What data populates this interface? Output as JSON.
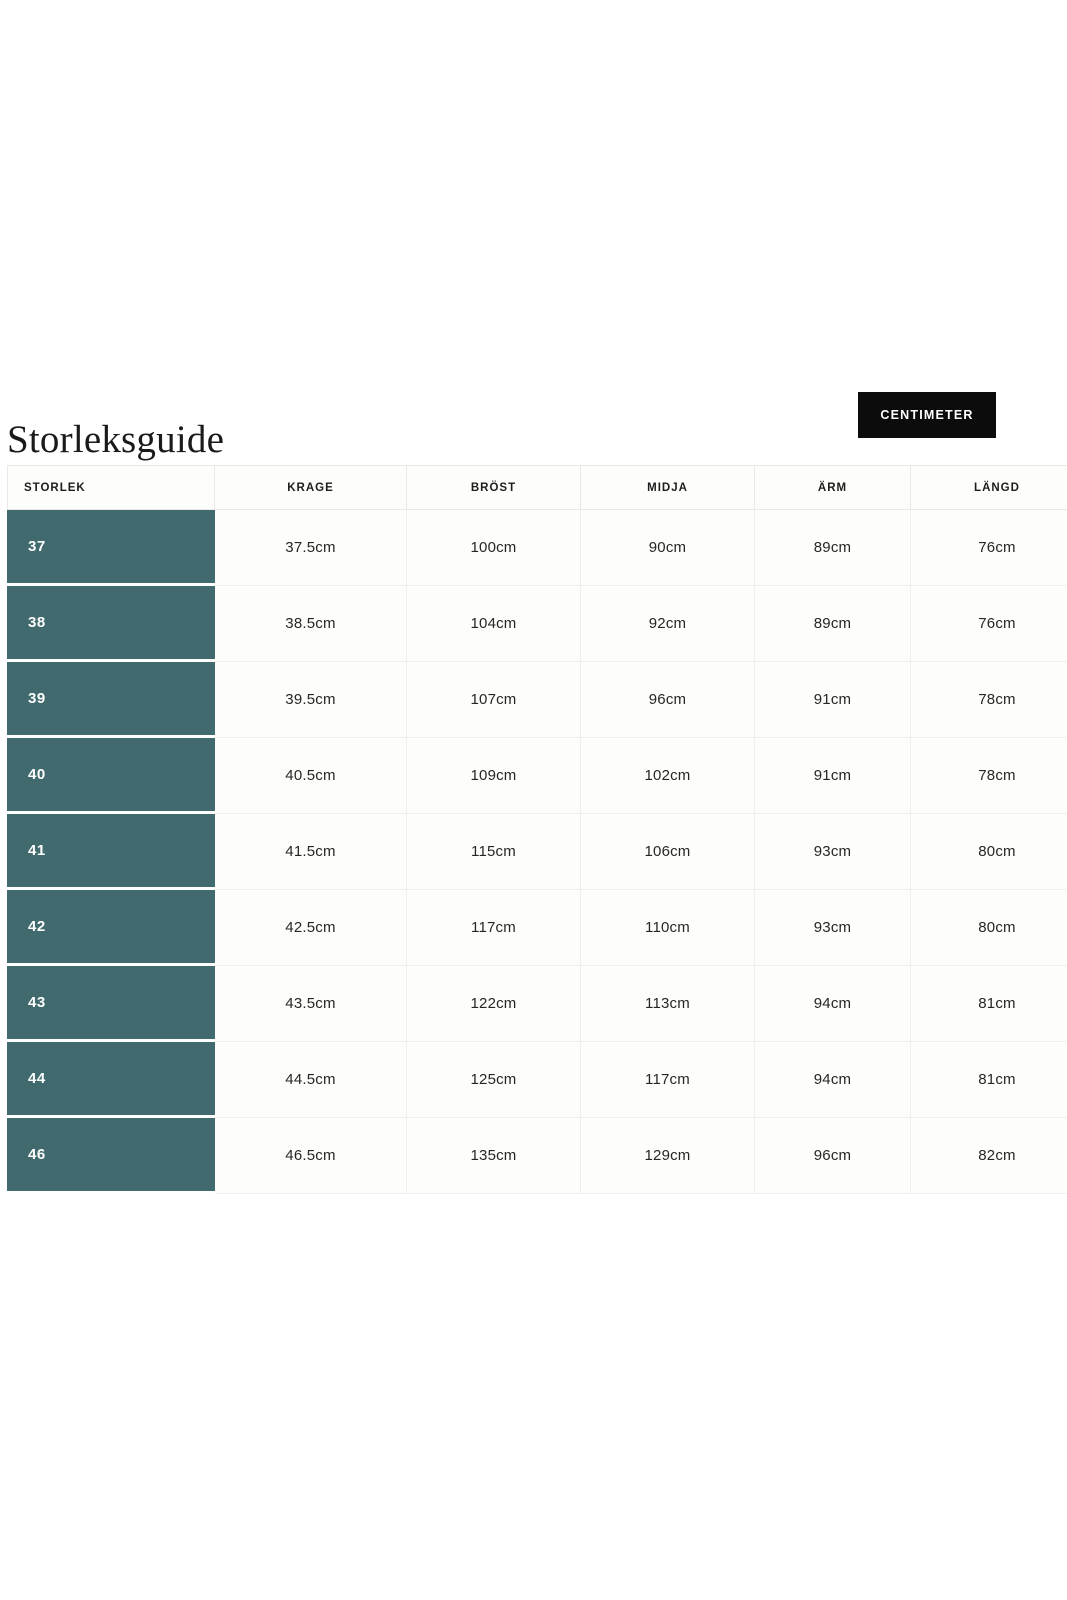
{
  "page": {
    "title": "Storleksguide"
  },
  "toolbar": {
    "unit_button_label": "CENTIMETER"
  },
  "colors": {
    "accent_teal": "#406a6e",
    "button_bg": "#0c0c0c",
    "button_text": "#ffffff",
    "cell_border": "#f1efeb",
    "text_dark": "#1d1d1d"
  },
  "table": {
    "headers": [
      "STORLEK",
      "KRAGE",
      "BRÖST",
      "MIDJA",
      "ÄRM",
      "LÄNGD"
    ],
    "rows": [
      {
        "size": "37",
        "values": [
          "37.5cm",
          "100cm",
          "90cm",
          "89cm",
          "76cm"
        ]
      },
      {
        "size": "38",
        "values": [
          "38.5cm",
          "104cm",
          "92cm",
          "89cm",
          "76cm"
        ]
      },
      {
        "size": "39",
        "values": [
          "39.5cm",
          "107cm",
          "96cm",
          "91cm",
          "78cm"
        ]
      },
      {
        "size": "40",
        "values": [
          "40.5cm",
          "109cm",
          "102cm",
          "91cm",
          "78cm"
        ]
      },
      {
        "size": "41",
        "values": [
          "41.5cm",
          "115cm",
          "106cm",
          "93cm",
          "80cm"
        ]
      },
      {
        "size": "42",
        "values": [
          "42.5cm",
          "117cm",
          "110cm",
          "93cm",
          "80cm"
        ]
      },
      {
        "size": "43",
        "values": [
          "43.5cm",
          "122cm",
          "113cm",
          "94cm",
          "81cm"
        ]
      },
      {
        "size": "44",
        "values": [
          "44.5cm",
          "125cm",
          "117cm",
          "94cm",
          "81cm"
        ]
      },
      {
        "size": "46",
        "values": [
          "46.5cm",
          "135cm",
          "129cm",
          "96cm",
          "82cm"
        ]
      }
    ]
  }
}
